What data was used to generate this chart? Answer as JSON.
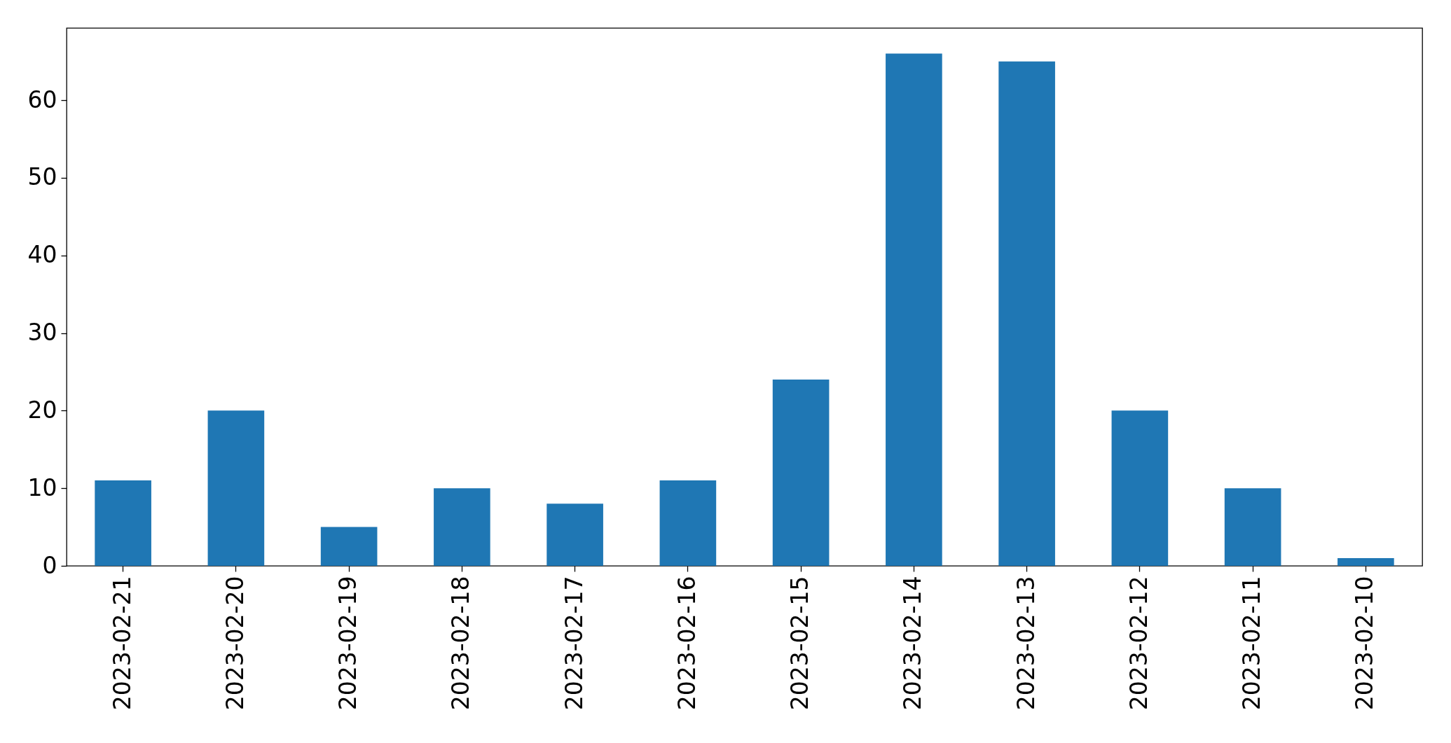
{
  "chart_data": {
    "type": "bar",
    "categories": [
      "2023-02-21",
      "2023-02-20",
      "2023-02-19",
      "2023-02-18",
      "2023-02-17",
      "2023-02-16",
      "2023-02-15",
      "2023-02-14",
      "2023-02-13",
      "2023-02-12",
      "2023-02-11",
      "2023-02-10"
    ],
    "values": [
      11,
      20,
      5,
      10,
      8,
      11,
      24,
      66,
      65,
      20,
      10,
      1
    ],
    "color": "#1f77b4",
    "ylim": [
      0,
      69.3
    ],
    "yticks": [
      0,
      10,
      20,
      30,
      40,
      50,
      60
    ],
    "grid": false
  }
}
